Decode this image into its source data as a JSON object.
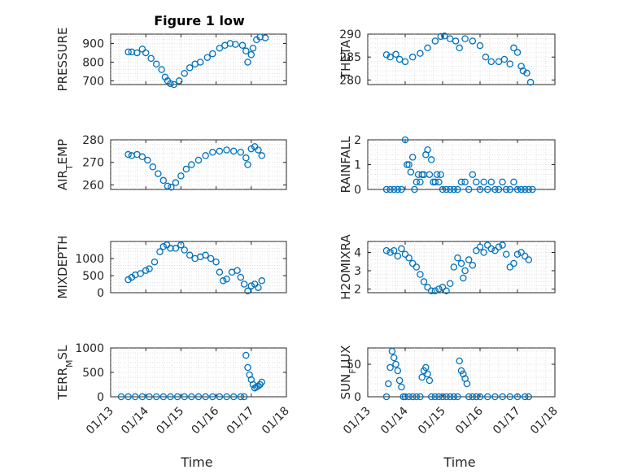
{
  "figure": {
    "title": "Figure 1 low",
    "color": "#0072BD"
  },
  "chart_data": [
    {
      "type": "scatter",
      "title": "Figure 1 low",
      "ylabel": "PRESSURE",
      "ylim": [
        680,
        950
      ],
      "yticks": [
        700,
        800,
        900
      ],
      "yticklabels": [
        "700",
        "800",
        "900"
      ],
      "xlim": [
        0,
        5
      ],
      "xticks": [
        0,
        1,
        2,
        3,
        4,
        5
      ],
      "xticklabels": [
        "01/13",
        "01/14",
        "01/15",
        "01/16",
        "01/17",
        "01/18"
      ],
      "show_xticklabels": false,
      "xlabel": "",
      "series": [
        {
          "x": [
            0.5,
            0.6,
            0.75,
            0.9,
            1.0,
            1.15,
            1.3,
            1.45,
            1.55,
            1.62,
            1.7,
            1.8,
            1.95,
            2.1,
            2.25,
            2.4,
            2.55,
            2.75,
            2.9,
            3.1,
            3.25,
            3.4,
            3.55,
            3.75,
            3.85,
            3.9,
            4.0,
            4.05,
            4.15,
            4.25,
            4.4
          ],
          "y": [
            855,
            855,
            850,
            870,
            850,
            820,
            790,
            760,
            720,
            700,
            685,
            680,
            700,
            740,
            770,
            790,
            800,
            825,
            845,
            875,
            890,
            900,
            895,
            890,
            860,
            800,
            840,
            875,
            920,
            935,
            930
          ]
        }
      ]
    },
    {
      "type": "scatter",
      "title": "",
      "ylabel": "THETA",
      "ylim": [
        279,
        290
      ],
      "yticks": [
        280,
        285,
        290
      ],
      "yticklabels": [
        "280",
        "285",
        "290"
      ],
      "xlim": [
        0,
        5
      ],
      "xticks": [
        0,
        1,
        2,
        3,
        4,
        5
      ],
      "xticklabels": [
        "01/13",
        "01/14",
        "01/15",
        "01/16",
        "01/17",
        "01/18"
      ],
      "show_xticklabels": false,
      "xlabel": "",
      "series": [
        {
          "x": [
            0.5,
            0.6,
            0.75,
            0.85,
            1.0,
            1.2,
            1.4,
            1.6,
            1.8,
            1.95,
            2.05,
            2.2,
            2.35,
            2.45,
            2.6,
            2.8,
            3.0,
            3.15,
            3.3,
            3.5,
            3.65,
            3.8,
            3.9,
            4.0,
            4.1,
            4.15,
            4.25,
            4.35
          ],
          "y": [
            285.5,
            285,
            285.6,
            284.5,
            284,
            285,
            285.8,
            287,
            288.5,
            289.5,
            289.6,
            289,
            288.5,
            287,
            289,
            288.5,
            287.5,
            285,
            284,
            284,
            284.5,
            283.5,
            287,
            286,
            283,
            282,
            281.5,
            279.5
          ]
        }
      ]
    },
    {
      "type": "scatter",
      "title": "",
      "ylabel": "AIR_T EMP",
      "ylim": [
        258,
        280
      ],
      "yticks": [
        260,
        270,
        280
      ],
      "yticklabels": [
        "260",
        "270",
        "280"
      ],
      "xlim": [
        0,
        5
      ],
      "xticks": [
        0,
        1,
        2,
        3,
        4,
        5
      ],
      "xticklabels": [
        "01/13",
        "01/14",
        "01/15",
        "01/16",
        "01/17",
        "01/18"
      ],
      "show_xticklabels": false,
      "xlabel": "",
      "series": [
        {
          "x": [
            0.5,
            0.6,
            0.75,
            0.9,
            1.05,
            1.2,
            1.35,
            1.5,
            1.62,
            1.72,
            1.85,
            2.0,
            2.15,
            2.3,
            2.5,
            2.7,
            2.9,
            3.1,
            3.3,
            3.5,
            3.7,
            3.85,
            3.9,
            4.0,
            4.1,
            4.2,
            4.3
          ],
          "y": [
            273.5,
            273,
            273.5,
            272.5,
            271,
            268,
            265,
            262,
            259.5,
            259,
            261,
            264,
            267,
            269,
            271,
            273,
            274.5,
            275,
            275.5,
            275,
            274.5,
            272,
            269,
            276,
            277,
            275.5,
            273
          ]
        }
      ]
    },
    {
      "type": "scatter",
      "title": "",
      "ylabel": "RAINFALL",
      "ylim": [
        0,
        2
      ],
      "yticks": [
        0,
        1,
        2
      ],
      "yticklabels": [
        "0",
        "1",
        "2"
      ],
      "xlim": [
        0,
        5
      ],
      "xticks": [
        0,
        1,
        2,
        3,
        4,
        5
      ],
      "xticklabels": [
        "01/13",
        "01/14",
        "01/15",
        "01/16",
        "01/17",
        "01/18"
      ],
      "show_xticklabels": false,
      "xlabel": "",
      "series": [
        {
          "x": [
            0.5,
            0.6,
            0.7,
            0.8,
            0.9,
            1.0,
            1.05,
            1.1,
            1.15,
            1.2,
            1.25,
            1.3,
            1.35,
            1.4,
            1.45,
            1.5,
            1.55,
            1.6,
            1.65,
            1.7,
            1.75,
            1.8,
            1.85,
            1.9,
            1.95,
            2.0,
            2.1,
            2.2,
            2.3,
            2.4,
            2.5,
            2.6,
            2.7,
            2.8,
            2.9,
            3.0,
            3.1,
            3.2,
            3.3,
            3.4,
            3.5,
            3.6,
            3.7,
            3.8,
            3.9,
            4.0,
            4.1,
            4.2,
            4.3,
            4.4
          ],
          "y": [
            0,
            0,
            0,
            0,
            0,
            2,
            1,
            1,
            0.7,
            1.3,
            0,
            0.3,
            0.6,
            0.3,
            0.6,
            0.6,
            1.4,
            1.6,
            0.6,
            1.2,
            0.3,
            0.3,
            0.6,
            0.3,
            0.6,
            0,
            0,
            0,
            0,
            0,
            0.3,
            0.3,
            0,
            0.6,
            0.3,
            0,
            0.3,
            0,
            0.3,
            0,
            0,
            0.3,
            0,
            0,
            0.3,
            0,
            0,
            0,
            0,
            0
          ]
        }
      ]
    },
    {
      "type": "scatter",
      "title": "",
      "ylabel": "MIXDEPTH",
      "ylim": [
        0,
        1500
      ],
      "yticks": [
        0,
        500,
        1000
      ],
      "yticklabels": [
        "0",
        "500",
        "1000"
      ],
      "xlim": [
        0,
        5
      ],
      "xticks": [
        0,
        1,
        2,
        3,
        4,
        5
      ],
      "xticklabels": [
        "01/13",
        "01/14",
        "01/15",
        "01/16",
        "01/17",
        "01/18"
      ],
      "show_xticklabels": false,
      "xlabel": "",
      "series": [
        {
          "x": [
            0.5,
            0.6,
            0.7,
            0.85,
            1.0,
            1.1,
            1.25,
            1.4,
            1.5,
            1.6,
            1.7,
            1.85,
            2.0,
            2.1,
            2.25,
            2.4,
            2.55,
            2.7,
            2.85,
            3.0,
            3.1,
            3.2,
            3.3,
            3.45,
            3.6,
            3.7,
            3.8,
            3.9,
            4.0,
            4.1,
            4.2,
            4.3
          ],
          "y": [
            380,
            450,
            520,
            560,
            650,
            700,
            900,
            1200,
            1350,
            1400,
            1300,
            1300,
            1400,
            1250,
            1100,
            1000,
            1050,
            1100,
            1000,
            900,
            600,
            350,
            400,
            600,
            650,
            450,
            250,
            50,
            200,
            250,
            150,
            350
          ]
        }
      ]
    },
    {
      "type": "scatter",
      "title": "",
      "ylabel": "H2OMIXRA",
      "ylim": [
        1.8,
        4.6
      ],
      "yticks": [
        2,
        3,
        4
      ],
      "yticklabels": [
        "2",
        "3",
        "4"
      ],
      "xlim": [
        0,
        5
      ],
      "xticks": [
        0,
        1,
        2,
        3,
        4,
        5
      ],
      "xticklabels": [
        "01/13",
        "01/14",
        "01/15",
        "01/16",
        "01/17",
        "01/18"
      ],
      "show_xticklabels": false,
      "xlabel": "",
      "series": [
        {
          "x": [
            0.5,
            0.6,
            0.7,
            0.8,
            0.9,
            1.0,
            1.1,
            1.2,
            1.3,
            1.4,
            1.5,
            1.6,
            1.7,
            1.8,
            1.9,
            2.0,
            2.1,
            2.2,
            2.3,
            2.4,
            2.5,
            2.55,
            2.6,
            2.7,
            2.8,
            2.9,
            3.0,
            3.1,
            3.2,
            3.3,
            3.4,
            3.5,
            3.6,
            3.7,
            3.8,
            3.9,
            4.0,
            4.1,
            4.2,
            4.3
          ],
          "y": [
            4.1,
            4.0,
            4.1,
            3.8,
            4.2,
            3.9,
            3.7,
            3.4,
            3.2,
            2.8,
            2.4,
            2.1,
            1.9,
            1.9,
            2.0,
            2.1,
            1.9,
            2.3,
            3.2,
            3.7,
            3.4,
            2.6,
            3.0,
            3.6,
            3.3,
            4.1,
            4.3,
            4.0,
            4.4,
            4.2,
            4.1,
            4.3,
            4.4,
            3.9,
            3.2,
            3.4,
            3.9,
            4.0,
            3.8,
            3.6
          ]
        }
      ]
    },
    {
      "type": "scatter",
      "title": "",
      "ylabel": "TERR_M SL",
      "ylim": [
        0,
        1000
      ],
      "yticks": [
        0,
        500,
        1000
      ],
      "yticklabels": [
        "0",
        "500",
        "1000"
      ],
      "xlim": [
        0,
        5
      ],
      "xticks": [
        0,
        1,
        2,
        3,
        4,
        5
      ],
      "xticklabels": [
        "01/13",
        "01/14",
        "01/15",
        "01/16",
        "01/17",
        "01/18"
      ],
      "show_xticklabels": true,
      "xlabel": "Time",
      "series": [
        {
          "x": [
            0.3,
            0.5,
            0.7,
            0.9,
            1.1,
            1.3,
            1.5,
            1.7,
            1.9,
            2.1,
            2.3,
            2.5,
            2.7,
            2.9,
            3.1,
            3.3,
            3.5,
            3.7,
            3.8,
            3.85,
            3.9,
            3.95,
            4.0,
            4.05,
            4.1,
            4.15,
            4.2,
            4.25,
            4.3
          ],
          "y": [
            0,
            0,
            0,
            0,
            0,
            0,
            0,
            0,
            0,
            0,
            0,
            0,
            0,
            0,
            0,
            0,
            0,
            0,
            0,
            850,
            600,
            450,
            350,
            250,
            180,
            200,
            220,
            250,
            300
          ]
        }
      ]
    },
    {
      "type": "scatter",
      "title": "",
      "ylabel": "SUN_F LUX",
      "ylim": [
        0,
        75
      ],
      "yticks": [
        0,
        50
      ],
      "yticklabels": [
        "0",
        "50"
      ],
      "xlim": [
        0,
        5
      ],
      "xticks": [
        0,
        1,
        2,
        3,
        4,
        5
      ],
      "xticklabels": [
        "01/13",
        "01/14",
        "01/15",
        "01/16",
        "01/17",
        "01/18"
      ],
      "show_xticklabels": true,
      "xlabel": "Time",
      "series": [
        {
          "x": [
            0.5,
            0.55,
            0.6,
            0.65,
            0.7,
            0.75,
            0.8,
            0.85,
            0.9,
            0.95,
            1.0,
            1.1,
            1.2,
            1.3,
            1.4,
            1.45,
            1.5,
            1.55,
            1.6,
            1.65,
            1.7,
            1.8,
            1.9,
            2.0,
            2.1,
            2.2,
            2.3,
            2.4,
            2.45,
            2.5,
            2.55,
            2.6,
            2.65,
            2.7,
            2.8,
            2.9,
            3.0,
            3.2,
            3.4,
            3.6,
            3.8,
            4.0,
            4.2,
            4.3
          ],
          "y": [
            0,
            20,
            45,
            70,
            60,
            50,
            40,
            25,
            15,
            0,
            0,
            0,
            0,
            0,
            0,
            30,
            40,
            45,
            35,
            25,
            0,
            0,
            0,
            0,
            0,
            0,
            0,
            0,
            55,
            40,
            35,
            28,
            20,
            0,
            0,
            0,
            0,
            0,
            0,
            0,
            0,
            0,
            0,
            0
          ]
        }
      ]
    }
  ]
}
